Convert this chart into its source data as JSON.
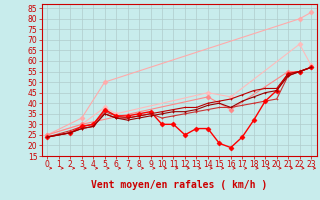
{
  "xlabel": "Vent moyen/en rafales ( km/h )",
  "background_color": "#c8ecec",
  "grid_color": "#b0cccc",
  "xlim": [
    -0.5,
    23.5
  ],
  "ylim": [
    15,
    87
  ],
  "yticks": [
    15,
    20,
    25,
    30,
    35,
    40,
    45,
    50,
    55,
    60,
    65,
    70,
    75,
    80,
    85
  ],
  "xticks": [
    0,
    1,
    2,
    3,
    4,
    5,
    6,
    7,
    8,
    9,
    10,
    11,
    12,
    13,
    14,
    15,
    16,
    17,
    18,
    19,
    20,
    21,
    22,
    23
  ],
  "series": [
    {
      "x": [
        0,
        3,
        5,
        22,
        23
      ],
      "y": [
        25,
        33,
        50,
        80,
        83
      ],
      "color": "#ffaaaa",
      "lw": 0.8,
      "ms": 2.5,
      "marker": "D"
    },
    {
      "x": [
        0,
        3,
        5,
        6,
        14,
        16,
        22,
        23
      ],
      "y": [
        25,
        30,
        38,
        35,
        45,
        43,
        68,
        58
      ],
      "color": "#ffbbbb",
      "lw": 0.8,
      "ms": 2.5,
      "marker": "D"
    },
    {
      "x": [
        0,
        3,
        14,
        16,
        21,
        22,
        23
      ],
      "y": [
        25,
        30,
        43,
        37,
        55,
        55,
        57
      ],
      "color": "#ff8888",
      "lw": 0.8,
      "ms": 2.5,
      "marker": "D"
    },
    {
      "x": [
        0,
        2,
        3,
        4,
        5,
        6,
        7,
        8,
        9,
        10,
        11,
        12,
        13,
        14,
        15,
        16,
        17,
        18,
        19,
        20,
        21,
        22,
        23
      ],
      "y": [
        24,
        27,
        29,
        30,
        36,
        34,
        33,
        34,
        35,
        33,
        34,
        35,
        36,
        37,
        38,
        38,
        39,
        40,
        41,
        42,
        53,
        55,
        57
      ],
      "color": "#cc3333",
      "lw": 0.8,
      "ms": 2.0,
      "marker": "+"
    },
    {
      "x": [
        0,
        2,
        3,
        4,
        5,
        6,
        7,
        8,
        9,
        10,
        11,
        12,
        13,
        14,
        15,
        16,
        17,
        18,
        19,
        20,
        21,
        22,
        23
      ],
      "y": [
        24,
        26,
        29,
        30,
        37,
        34,
        34,
        35,
        36,
        30,
        30,
        25,
        28,
        28,
        21,
        19,
        24,
        32,
        41,
        46,
        54,
        55,
        57
      ],
      "color": "#ff0000",
      "lw": 1.0,
      "ms": 2.5,
      "marker": "D"
    },
    {
      "x": [
        0,
        2,
        3,
        4,
        5,
        6,
        7,
        8,
        9,
        10,
        11,
        12,
        13,
        14,
        15,
        16,
        17,
        18,
        19,
        20,
        21,
        22,
        23
      ],
      "y": [
        24,
        26,
        28,
        29,
        35,
        33,
        33,
        34,
        35,
        36,
        37,
        38,
        38,
        40,
        41,
        42,
        44,
        46,
        47,
        47,
        54,
        55,
        57
      ],
      "color": "#bb0000",
      "lw": 0.8,
      "ms": 2.0,
      "marker": "+"
    },
    {
      "x": [
        0,
        2,
        3,
        4,
        5,
        6,
        7,
        8,
        9,
        10,
        11,
        12,
        13,
        14,
        15,
        16,
        17,
        18,
        19,
        20,
        21,
        22,
        23
      ],
      "y": [
        24,
        26,
        28,
        29,
        35,
        33,
        32,
        33,
        34,
        35,
        36,
        36,
        37,
        39,
        40,
        38,
        41,
        43,
        45,
        46,
        53,
        55,
        57
      ],
      "color": "#990000",
      "lw": 0.8,
      "ms": 2.0,
      "marker": "+"
    }
  ],
  "arrow_color": "#cc0000",
  "xlabel_color": "#cc0000",
  "xlabel_fontsize": 7,
  "tick_color": "#cc0000",
  "tick_fontsize": 5.5
}
